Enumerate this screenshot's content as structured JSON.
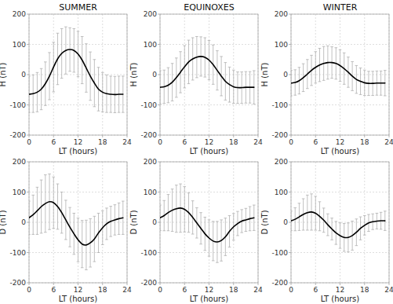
{
  "chart_data": [
    {
      "type": "line",
      "title": "SUMMER",
      "x_label": "LT (hours)",
      "y_label": "H (nT)",
      "x": [
        0,
        1,
        2,
        3,
        4,
        5,
        6,
        7,
        8,
        9,
        10,
        11,
        12,
        13,
        14,
        15,
        16,
        17,
        18,
        19,
        20,
        21,
        22,
        23
      ],
      "series": [
        {
          "color": "#000000",
          "values": [
            -65,
            -63,
            -58,
            -48,
            -30,
            -5,
            25,
            52,
            70,
            80,
            83,
            80,
            68,
            48,
            22,
            -5,
            -28,
            -48,
            -58,
            -63,
            -65,
            -66,
            -65,
            -65
          ],
          "error": [
            60,
            62,
            65,
            68,
            72,
            78,
            82,
            85,
            82,
            78,
            72,
            72,
            75,
            78,
            80,
            80,
            78,
            72,
            65,
            62,
            60,
            60,
            60,
            60
          ]
        }
      ],
      "xlim": [
        0,
        24
      ],
      "ylim": [
        -200,
        200
      ],
      "xticks": [
        0,
        6,
        12,
        18,
        24
      ],
      "yticks": [
        -200,
        -100,
        0,
        100,
        200
      ],
      "grid": true
    },
    {
      "type": "line",
      "title": "EQUINOXES",
      "x_label": "LT (hours)",
      "y_label": "H (nT)",
      "x": [
        0,
        1,
        2,
        3,
        4,
        5,
        6,
        7,
        8,
        9,
        10,
        11,
        12,
        13,
        14,
        15,
        16,
        17,
        18,
        19,
        20,
        21,
        22,
        23
      ],
      "series": [
        {
          "color": "#000000",
          "values": [
            -42,
            -40,
            -35,
            -25,
            -10,
            8,
            26,
            42,
            52,
            58,
            60,
            57,
            48,
            33,
            14,
            -5,
            -22,
            -33,
            -40,
            -43,
            -43,
            -42,
            -42,
            -42
          ],
          "error": [
            55,
            55,
            58,
            62,
            65,
            68,
            70,
            72,
            70,
            68,
            65,
            65,
            65,
            65,
            65,
            65,
            62,
            58,
            55,
            52,
            52,
            52,
            52,
            55
          ]
        }
      ],
      "xlim": [
        0,
        24
      ],
      "ylim": [
        -200,
        200
      ],
      "xticks": [
        0,
        6,
        12,
        18,
        24
      ],
      "yticks": [
        -200,
        -100,
        0,
        100,
        200
      ],
      "grid": true
    },
    {
      "type": "line",
      "title": "WINTER",
      "x_label": "LT (hours)",
      "y_label": "H (nT)",
      "x": [
        0,
        1,
        2,
        3,
        4,
        5,
        6,
        7,
        8,
        9,
        10,
        11,
        12,
        13,
        14,
        15,
        16,
        17,
        18,
        19,
        20,
        21,
        22,
        23
      ],
      "series": [
        {
          "color": "#000000",
          "values": [
            -28,
            -26,
            -20,
            -10,
            2,
            14,
            24,
            32,
            37,
            40,
            40,
            37,
            30,
            20,
            8,
            -5,
            -16,
            -22,
            -27,
            -29,
            -29,
            -28,
            -28,
            -28
          ],
          "error": [
            42,
            42,
            44,
            46,
            48,
            50,
            52,
            55,
            56,
            55,
            52,
            52,
            52,
            52,
            50,
            48,
            46,
            44,
            42,
            40,
            40,
            40,
            40,
            42
          ]
        }
      ],
      "xlim": [
        0,
        24
      ],
      "ylim": [
        -200,
        200
      ],
      "xticks": [
        0,
        6,
        12,
        18,
        24
      ],
      "yticks": [
        -200,
        -100,
        0,
        100,
        200
      ],
      "grid": true
    },
    {
      "type": "line",
      "x_label": "LT (hours)",
      "y_label": "D (nT)",
      "x": [
        0,
        1,
        2,
        3,
        4,
        5,
        6,
        7,
        8,
        9,
        10,
        11,
        12,
        13,
        14,
        15,
        16,
        17,
        18,
        19,
        20,
        21,
        22,
        23
      ],
      "series": [
        {
          "color": "#000000",
          "values": [
            15,
            25,
            38,
            52,
            62,
            68,
            65,
            52,
            32,
            8,
            -16,
            -38,
            -58,
            -72,
            -75,
            -68,
            -55,
            -35,
            -18,
            -5,
            3,
            8,
            12,
            15
          ],
          "error": [
            55,
            65,
            78,
            88,
            95,
            92,
            85,
            75,
            68,
            65,
            65,
            68,
            72,
            78,
            82,
            80,
            75,
            65,
            56,
            52,
            50,
            50,
            52,
            55
          ]
        }
      ],
      "xlim": [
        0,
        24
      ],
      "ylim": [
        -200,
        200
      ],
      "xticks": [
        0,
        6,
        12,
        18,
        24
      ],
      "yticks": [
        -200,
        -100,
        0,
        100,
        200
      ],
      "grid": true
    },
    {
      "type": "line",
      "x_label": "LT (hours)",
      "y_label": "D (nT)",
      "x": [
        0,
        1,
        2,
        3,
        4,
        5,
        6,
        7,
        8,
        9,
        10,
        11,
        12,
        13,
        14,
        15,
        16,
        17,
        18,
        19,
        20,
        21,
        22,
        23
      ],
      "series": [
        {
          "color": "#000000",
          "values": [
            15,
            22,
            32,
            40,
            45,
            47,
            43,
            32,
            16,
            -2,
            -20,
            -38,
            -52,
            -62,
            -65,
            -60,
            -48,
            -30,
            -15,
            -4,
            4,
            8,
            12,
            15
          ],
          "error": [
            42,
            50,
            60,
            70,
            78,
            80,
            75,
            65,
            55,
            50,
            52,
            55,
            60,
            65,
            68,
            68,
            62,
            52,
            44,
            40,
            38,
            38,
            40,
            42
          ]
        }
      ],
      "xlim": [
        0,
        24
      ],
      "ylim": [
        -200,
        200
      ],
      "xticks": [
        0,
        6,
        12,
        18,
        24
      ],
      "yticks": [
        -200,
        -100,
        0,
        100,
        200
      ],
      "grid": true
    },
    {
      "type": "line",
      "x_label": "LT (hours)",
      "y_label": "D (nT)",
      "x": [
        0,
        1,
        2,
        3,
        4,
        5,
        6,
        7,
        8,
        9,
        10,
        11,
        12,
        13,
        14,
        15,
        16,
        17,
        18,
        19,
        20,
        21,
        22,
        23
      ],
      "series": [
        {
          "color": "#000000",
          "values": [
            5,
            10,
            18,
            26,
            32,
            34,
            30,
            20,
            7,
            -8,
            -22,
            -35,
            -44,
            -50,
            -50,
            -44,
            -33,
            -20,
            -10,
            -2,
            2,
            4,
            5,
            5
          ],
          "error": [
            32,
            38,
            45,
            52,
            58,
            60,
            56,
            48,
            40,
            36,
            36,
            38,
            42,
            46,
            48,
            48,
            44,
            38,
            32,
            28,
            26,
            26,
            28,
            32
          ]
        }
      ],
      "xlim": [
        0,
        24
      ],
      "ylim": [
        -200,
        200
      ],
      "xticks": [
        0,
        6,
        12,
        18,
        24
      ],
      "yticks": [
        -200,
        -100,
        0,
        100,
        200
      ],
      "grid": true
    }
  ]
}
